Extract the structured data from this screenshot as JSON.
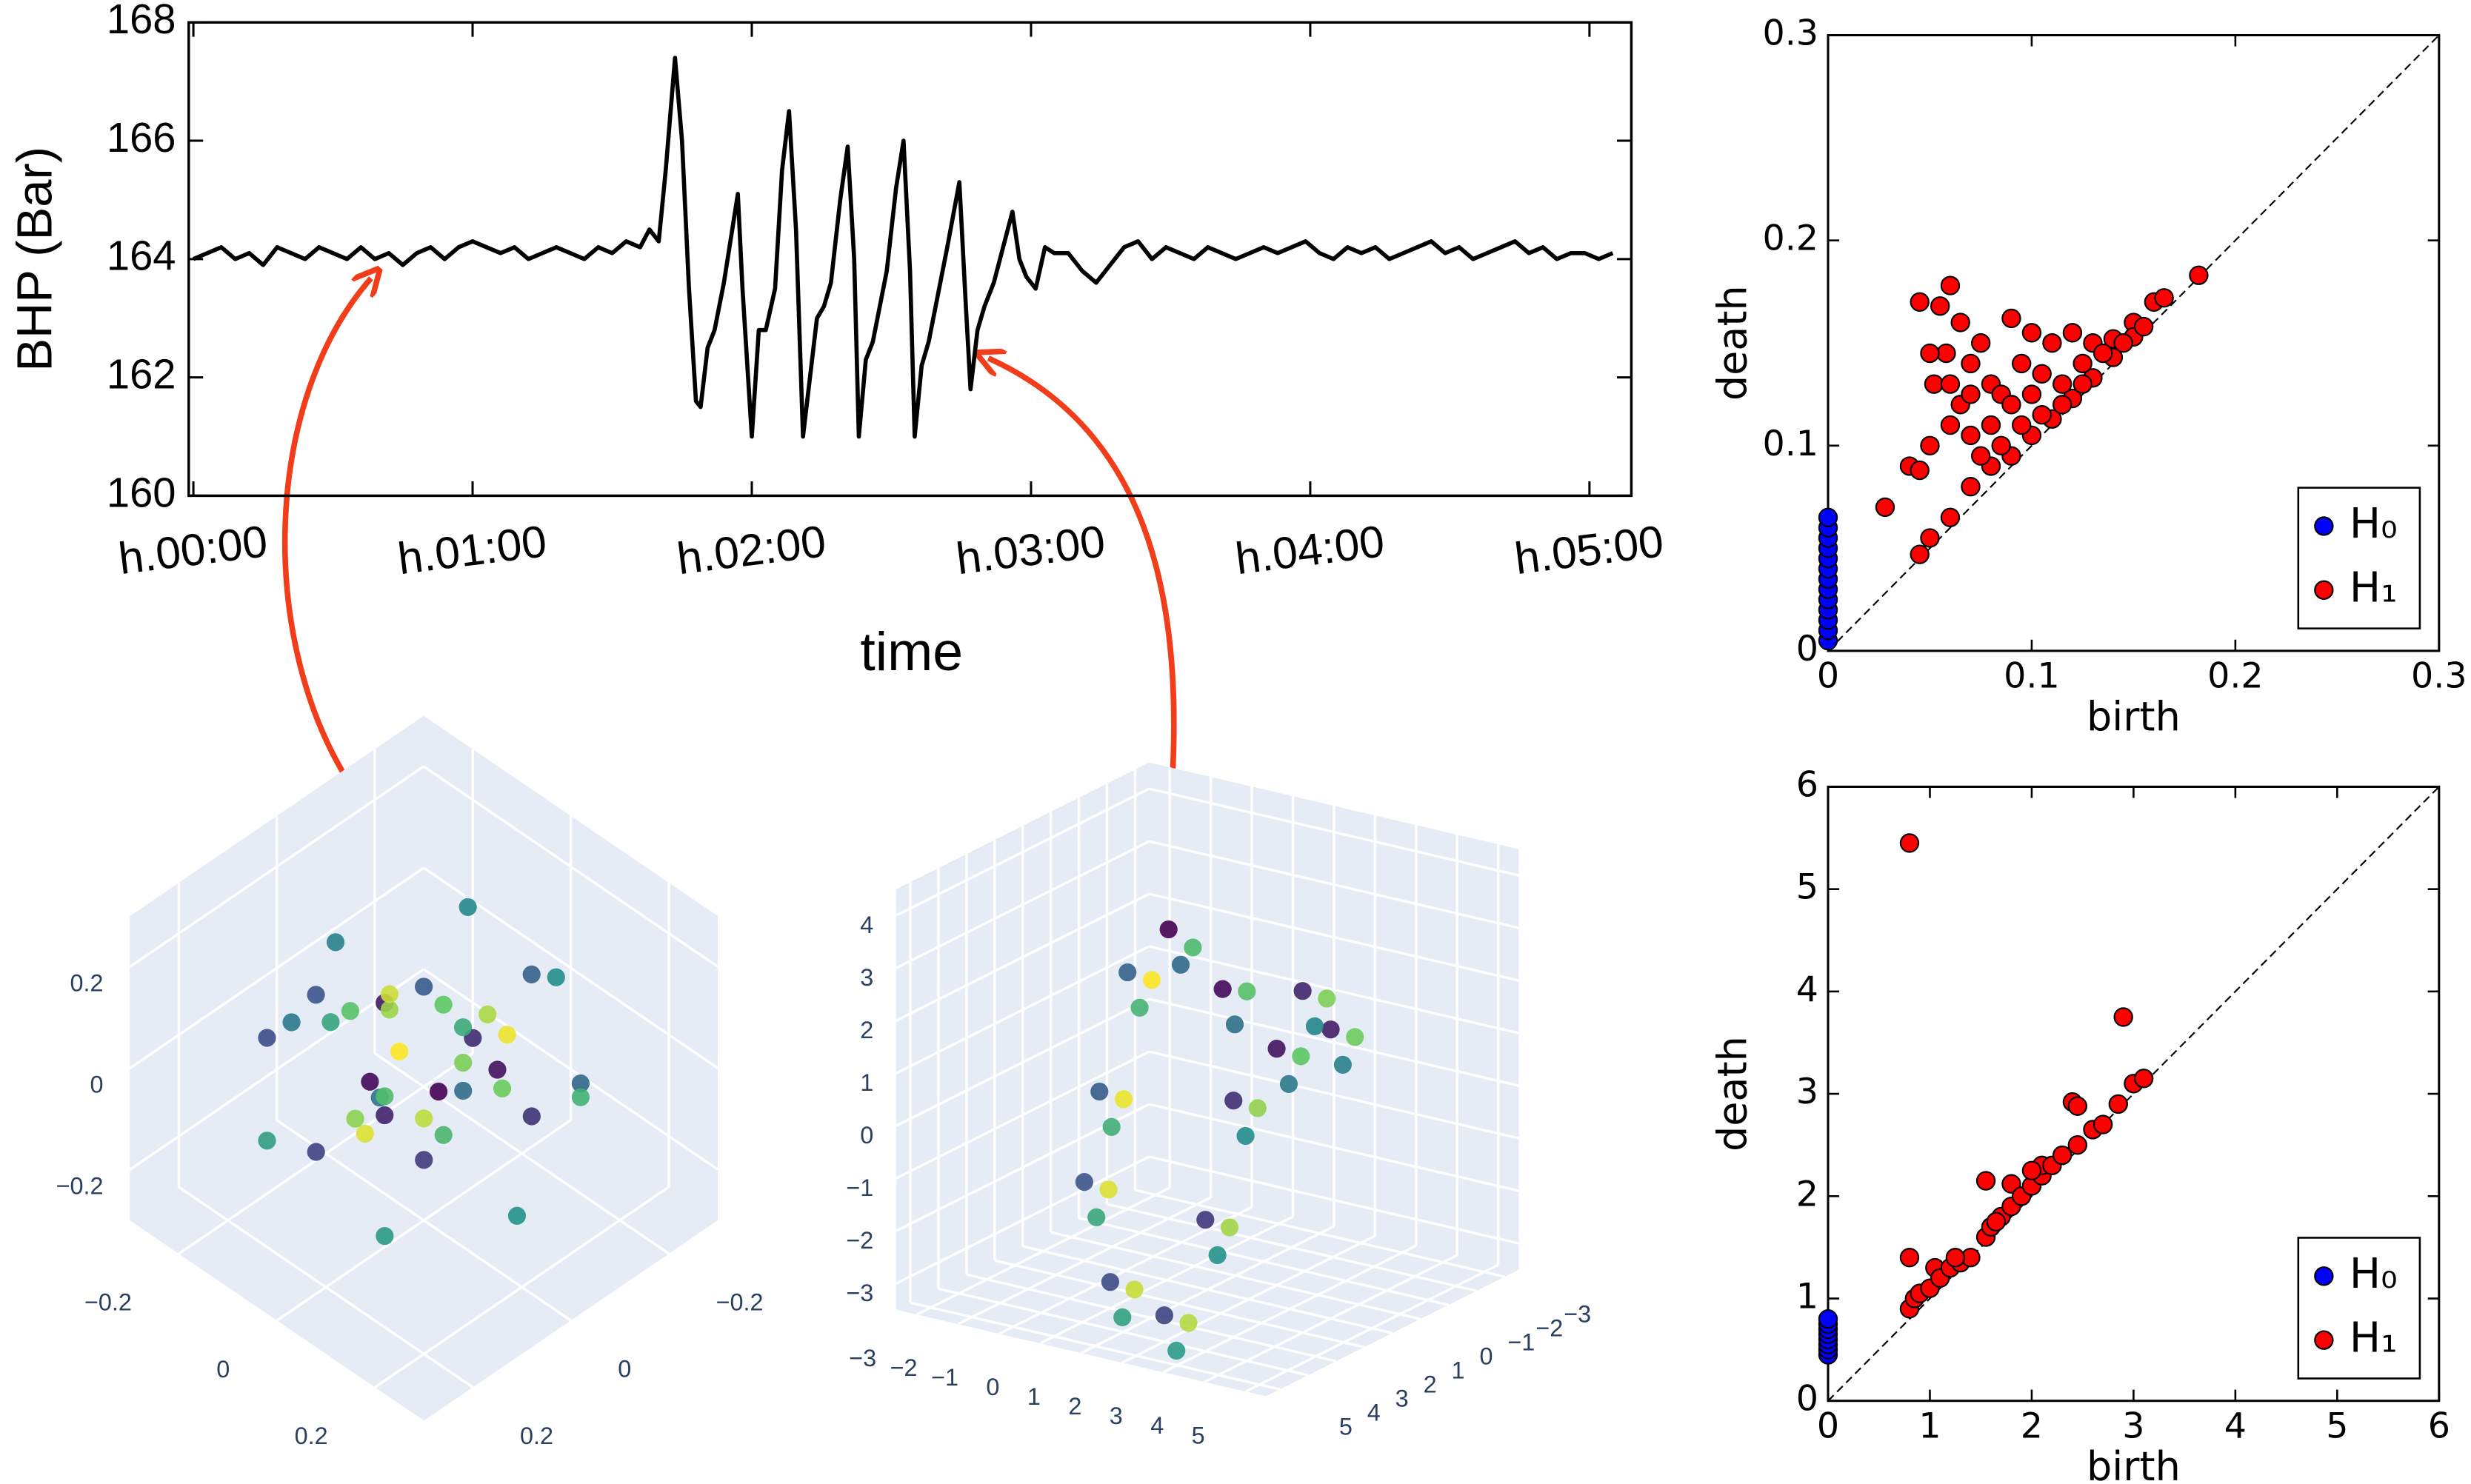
{
  "chart_data": [
    {
      "type": "line",
      "xlabel": "time",
      "ylabel": "BHP (Bar)",
      "color": "#000000",
      "x": [
        0,
        3,
        6,
        9,
        12,
        15,
        18,
        21,
        24,
        27,
        30,
        33,
        36,
        39,
        42,
        45,
        48,
        51,
        54,
        57,
        60,
        63,
        66,
        69,
        72,
        75,
        78,
        81,
        84,
        87,
        90,
        93,
        96,
        98,
        100,
        101.5,
        103.5,
        105,
        106.5,
        108,
        109,
        110.5,
        112,
        114,
        116,
        117,
        118,
        120,
        121.5,
        123,
        125,
        126.5,
        128,
        129.5,
        131,
        132.5,
        134,
        135.5,
        137,
        139,
        140.6,
        142,
        143,
        144.5,
        146,
        147.5,
        149,
        151,
        152.6,
        154,
        155,
        156.5,
        158,
        160,
        162,
        164.6,
        166,
        167,
        168.5,
        170,
        172,
        174,
        176,
        177.5,
        179,
        181,
        183,
        185,
        188,
        191,
        194,
        197,
        200,
        203,
        206,
        209,
        212,
        215,
        218,
        221,
        224,
        227,
        230,
        233,
        236,
        239,
        242,
        245,
        248,
        251,
        254,
        257,
        260,
        263,
        266,
        269,
        272,
        275,
        278,
        281,
        284,
        287,
        290,
        293,
        296,
        299,
        302,
        305
      ],
      "values": [
        164.0,
        164.1,
        164.2,
        164.0,
        164.1,
        163.9,
        164.2,
        164.1,
        164.0,
        164.2,
        164.1,
        164.0,
        164.2,
        164.0,
        164.1,
        163.9,
        164.1,
        164.2,
        164.0,
        164.2,
        164.3,
        164.2,
        164.1,
        164.2,
        164.0,
        164.1,
        164.2,
        164.1,
        164.0,
        164.2,
        164.1,
        164.3,
        164.2,
        164.5,
        164.3,
        165.5,
        167.4,
        166,
        163.5,
        161.6,
        161.5,
        162.5,
        162.8,
        163.6,
        164.6,
        165.1,
        163.5,
        161,
        162.8,
        162.8,
        163.5,
        165.5,
        166.5,
        164.5,
        161,
        162,
        163,
        163.2,
        163.6,
        165,
        165.9,
        164,
        161,
        162.3,
        162.6,
        163.2,
        163.8,
        165.2,
        166,
        163.8,
        161,
        162.2,
        162.6,
        163.4,
        164.2,
        165.3,
        163.2,
        161.8,
        162.8,
        163.2,
        163.6,
        164.2,
        164.8,
        164,
        163.7,
        163.5,
        164.2,
        164.1,
        164.1,
        163.8,
        163.6,
        163.9,
        164.2,
        164.3,
        164.0,
        164.2,
        164.1,
        164.0,
        164.2,
        164.1,
        164.0,
        164.1,
        164.2,
        164.1,
        164.2,
        164.3,
        164.1,
        164.0,
        164.2,
        164.1,
        164.2,
        164.0,
        164.1,
        164.2,
        164.3,
        164.1,
        164.2,
        164.0,
        164.1,
        164.2,
        164.3,
        164.1,
        164.2,
        164.0,
        164.1,
        164.1,
        164.0,
        164.1
      ],
      "xlim": [
        -1,
        309
      ],
      "ylim": [
        160,
        168
      ],
      "xticks": [
        {
          "value": 0,
          "label": "h.00:00"
        },
        {
          "value": 60,
          "label": "h.01:00"
        },
        {
          "value": 120,
          "label": "h.02:00"
        },
        {
          "value": 180,
          "label": "h.03:00"
        },
        {
          "value": 240,
          "label": "h.04:00"
        },
        {
          "value": 300,
          "label": "h.05:00"
        }
      ],
      "yticks": [
        160,
        162,
        164,
        166,
        168
      ]
    },
    {
      "type": "scatter3d",
      "colorscale": [
        "#440154",
        "#3b528b",
        "#21918c",
        "#5ec962",
        "#fde725"
      ],
      "x": [
        0.05,
        -0.05,
        0.1,
        -0.1,
        0.0,
        0.02,
        0.22,
        0.16,
        0.0,
        -0.16,
        -0.22,
        -0.16,
        0.0,
        0.16,
        0.18,
        0.09,
        -0.09,
        -0.18,
        -0.09,
        0.09,
        0.24,
        0.12,
        -0.12,
        -0.24,
        -0.12,
        0.12,
        0.12,
        0.04,
        -0.1,
        -0.06,
        0.08,
        0.1,
        -0.04,
        -0.1,
        0.03,
        0.06,
        -0.07,
        0.0,
        0.05,
        -0.05
      ],
      "y": [
        0.02,
        0.06,
        -0.05,
        -0.02,
        0.08,
        -0.08,
        0.0,
        0.16,
        0.22,
        0.16,
        0.0,
        -0.16,
        -0.22,
        -0.16,
        0.1,
        0.18,
        0.18,
        0.0,
        -0.18,
        -0.18,
        0.05,
        0.2,
        0.2,
        -0.05,
        -0.2,
        -0.2,
        0.08,
        0.12,
        0.05,
        -0.1,
        -0.08,
        0.02,
        0.1,
        -0.03,
        -0.1,
        0.06,
        0.0,
        0.12,
        -0.12,
        0.0
      ],
      "z": [
        0.0,
        -0.02,
        0.03,
        0.05,
        -0.04,
        0.02,
        0.05,
        0.03,
        -0.02,
        0.06,
        0.0,
        -0.05,
        0.04,
        -0.03,
        0.14,
        0.12,
        0.15,
        0.13,
        0.14,
        0.12,
        -0.1,
        -0.12,
        -0.09,
        -0.1,
        -0.13,
        -0.11,
        0.0,
        0.05,
        0.08,
        0.02,
        -0.04,
        0.09,
        -0.06,
        0.03,
        0.06,
        -0.02,
        0.1,
        -0.05,
        0.02,
        0.0
      ],
      "xlim": [
        -0.3,
        0.3
      ],
      "ylim": [
        -0.3,
        0.3
      ],
      "zlim": [
        -0.3,
        0.3
      ],
      "xticks": [
        {
          "value": -0.2,
          "label": "−0.2"
        },
        0,
        0.2
      ],
      "yticks": [
        {
          "value": -0.2,
          "label": "−0.2"
        },
        0,
        0.2
      ],
      "zticks": [
        {
          "value": -0.2,
          "label": "−0.2"
        },
        0,
        0.2
      ]
    },
    {
      "type": "scatter3d",
      "colorscale": [
        "#440154",
        "#3b528b",
        "#21918c",
        "#5ec962",
        "#fde725"
      ],
      "x": [
        -2,
        0,
        2,
        4,
        4,
        3,
        3,
        2,
        0,
        -2,
        -3,
        -3,
        -1.5,
        0.5,
        2.5,
        4.5,
        4.5,
        3.5,
        3.5,
        2.5,
        0.5,
        -1.5,
        -2.5,
        -2.5,
        -1,
        1,
        3,
        5,
        5,
        4,
        4,
        3,
        1,
        -1,
        -2,
        -2
      ],
      "y": [
        -2,
        -1,
        0,
        1,
        2,
        3,
        4,
        4,
        3,
        1,
        -1,
        -2,
        -1.7,
        -0.7,
        0.3,
        1.3,
        2.3,
        3.3,
        4.3,
        4.3,
        3.3,
        1.3,
        -0.7,
        -1.7,
        -1.4,
        -0.4,
        0.6,
        1.6,
        2.6,
        3.6,
        4.6,
        4.6,
        3.6,
        1.6,
        -0.4,
        -1.4
      ],
      "z": [
        2,
        1.5,
        1,
        2,
        3,
        1,
        -1,
        -3,
        -3,
        -2,
        -1,
        1,
        1.5,
        1,
        0.5,
        1.5,
        2.5,
        0.5,
        -1.5,
        -3.5,
        -3.5,
        -2.5,
        -1.5,
        0.5,
        2,
        1.8,
        1.2,
        2.2,
        3.2,
        1.2,
        -0.8,
        -2.8,
        -2.8,
        -1.8,
        -0.8,
        1.2
      ],
      "xlim": [
        -3.5,
        5.5
      ],
      "ylim": [
        -3.5,
        5.5
      ],
      "zlim": [
        -3.5,
        4.5
      ],
      "xticks": [
        {
          "value": -3,
          "label": "−3"
        },
        {
          "value": -2,
          "label": "−2"
        },
        {
          "value": -1,
          "label": "−1"
        },
        0,
        1,
        2,
        3,
        4,
        5
      ],
      "yticks": [
        {
          "value": -3,
          "label": "−3"
        },
        {
          "value": -2,
          "label": "−2"
        },
        {
          "value": -1,
          "label": "−1"
        },
        0,
        1,
        2,
        3,
        4,
        5
      ],
      "zticks": [
        {
          "value": -3,
          "label": "−3"
        },
        {
          "value": -2,
          "label": "−2"
        },
        {
          "value": -1,
          "label": "−1"
        },
        0,
        1,
        2,
        3,
        4
      ]
    },
    {
      "type": "scatter",
      "xlabel": "birth",
      "ylabel": "death",
      "diagonal": true,
      "legend": "lower right",
      "xlim": [
        0,
        0.3
      ],
      "ylim": [
        0,
        0.3
      ],
      "xticks": [
        0,
        0.1,
        0.2,
        0.3
      ],
      "yticks": [
        0,
        0.1,
        0.2,
        0.3
      ],
      "series": [
        {
          "name": "H₀",
          "color": "#0000ff",
          "x": [
            0,
            0,
            0,
            0,
            0,
            0,
            0,
            0,
            0,
            0,
            0,
            0,
            0
          ],
          "values": [
            0.005,
            0.01,
            0.015,
            0.02,
            0.025,
            0.03,
            0.035,
            0.04,
            0.045,
            0.05,
            0.055,
            0.06,
            0.065
          ]
        },
        {
          "name": "H₁",
          "color": "#ff0000",
          "x": [
            0.045,
            0.06,
            0.055,
            0.058,
            0.065,
            0.05,
            0.07,
            0.075,
            0.08,
            0.09,
            0.1,
            0.095,
            0.11,
            0.12,
            0.13,
            0.14,
            0.15,
            0.16,
            0.165,
            0.182,
            0.028,
            0.04,
            0.045,
            0.05,
            0.045,
            0.05,
            0.06,
            0.07,
            0.08,
            0.09,
            0.1,
            0.11,
            0.12,
            0.13,
            0.14,
            0.15,
            0.155,
            0.06,
            0.065,
            0.07,
            0.08,
            0.085,
            0.09,
            0.1,
            0.105,
            0.115,
            0.125,
            0.135,
            0.145,
            0.075,
            0.085,
            0.095,
            0.105,
            0.115,
            0.125,
            0.052,
            0.06,
            0.07
          ],
          "values": [
            0.17,
            0.178,
            0.168,
            0.145,
            0.16,
            0.145,
            0.14,
            0.15,
            0.13,
            0.162,
            0.155,
            0.14,
            0.15,
            0.155,
            0.15,
            0.152,
            0.16,
            0.17,
            0.172,
            0.183,
            0.07,
            0.09,
            0.088,
            0.1,
            0.047,
            0.055,
            0.065,
            0.08,
            0.09,
            0.095,
            0.105,
            0.113,
            0.123,
            0.133,
            0.143,
            0.153,
            0.158,
            0.11,
            0.12,
            0.105,
            0.11,
            0.125,
            0.12,
            0.125,
            0.135,
            0.13,
            0.14,
            0.145,
            0.15,
            0.095,
            0.1,
            0.11,
            0.115,
            0.12,
            0.13,
            0.13,
            0.13,
            0.125
          ]
        }
      ]
    },
    {
      "type": "scatter",
      "xlabel": "birth",
      "ylabel": "death",
      "diagonal": true,
      "legend": "lower right",
      "xlim": [
        0,
        6
      ],
      "ylim": [
        0,
        6
      ],
      "xticks": [
        0,
        1,
        2,
        3,
        4,
        5,
        6
      ],
      "yticks": [
        0,
        1,
        2,
        3,
        4,
        5,
        6
      ],
      "series": [
        {
          "name": "H₀",
          "color": "#0000ff",
          "x": [
            0,
            0,
            0,
            0,
            0,
            0,
            0,
            0
          ],
          "values": [
            0.45,
            0.5,
            0.55,
            0.6,
            0.65,
            0.7,
            0.75,
            0.8
          ]
        },
        {
          "name": "H₁",
          "color": "#ff0000",
          "x": [
            0.8,
            2.9,
            0.8,
            2.4,
            2.45,
            1.55,
            1.8,
            0.8,
            0.85,
            0.9,
            1.0,
            1.05,
            1.1,
            1.2,
            1.3,
            1.4,
            1.55,
            1.6,
            1.7,
            1.8,
            1.9,
            2.0,
            2.1,
            2.1,
            2.2,
            2.3,
            2.45,
            2.6,
            2.7,
            2.85,
            3.0,
            3.1,
            2.0,
            1.65,
            1.25
          ],
          "values": [
            5.45,
            3.75,
            1.4,
            2.92,
            2.88,
            2.15,
            2.12,
            0.9,
            1.0,
            1.05,
            1.1,
            1.3,
            1.2,
            1.3,
            1.35,
            1.4,
            1.6,
            1.7,
            1.8,
            1.9,
            2.0,
            2.1,
            2.2,
            2.3,
            2.3,
            2.4,
            2.5,
            2.65,
            2.7,
            2.9,
            3.1,
            3.15,
            2.25,
            1.75,
            1.4
          ]
        }
      ]
    }
  ]
}
